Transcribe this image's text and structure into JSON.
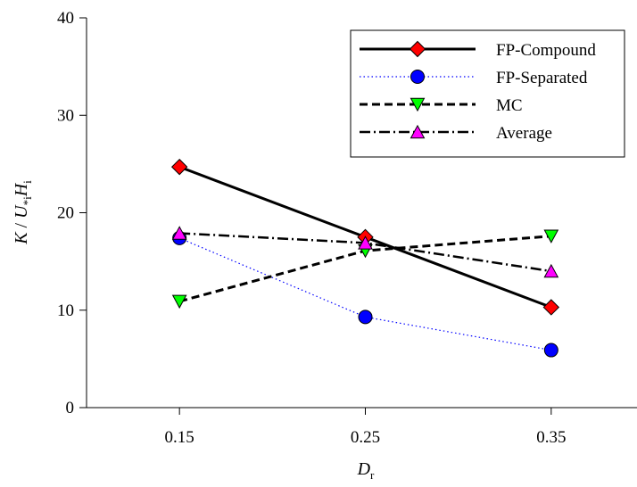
{
  "chart_data": {
    "type": "line",
    "x": [
      0.15,
      0.25,
      0.35
    ],
    "x_tick_labels": [
      "0.15",
      "0.25",
      "0.35"
    ],
    "xlim": [
      0.1,
      0.4
    ],
    "ylim": [
      0,
      40
    ],
    "y_ticks": [
      0,
      10,
      20,
      30,
      40
    ],
    "y_tick_labels": [
      "0",
      "10",
      "20",
      "30",
      "40"
    ],
    "xlabel": {
      "main": "D",
      "sub": "r"
    },
    "ylabel": {
      "k": "K",
      "sep": " / ",
      "u": "U",
      "u_sub": "*i",
      "h": "H",
      "h_sub": "i"
    },
    "grid": false,
    "legend_position": "top-right",
    "series": [
      {
        "name": "FP-Compound",
        "values": [
          24.7,
          17.5,
          10.3
        ],
        "color": "#000000",
        "line": "solid",
        "marker": "diamond",
        "marker_color": "#ff0000"
      },
      {
        "name": "FP-Separated",
        "values": [
          17.4,
          9.3,
          5.9
        ],
        "color": "#0000ff",
        "line": "dotted",
        "marker": "circle",
        "marker_color": "#0000ff"
      },
      {
        "name": "MC",
        "values": [
          10.9,
          16.1,
          17.6
        ],
        "color": "#000000",
        "line": "dashed",
        "marker": "triangle-down",
        "marker_color": "#00ff00"
      },
      {
        "name": "Average",
        "values": [
          17.9,
          16.9,
          14.0
        ],
        "color": "#000000",
        "line": "dashdot",
        "marker": "triangle-up",
        "marker_color": "#ff00ff"
      }
    ]
  }
}
